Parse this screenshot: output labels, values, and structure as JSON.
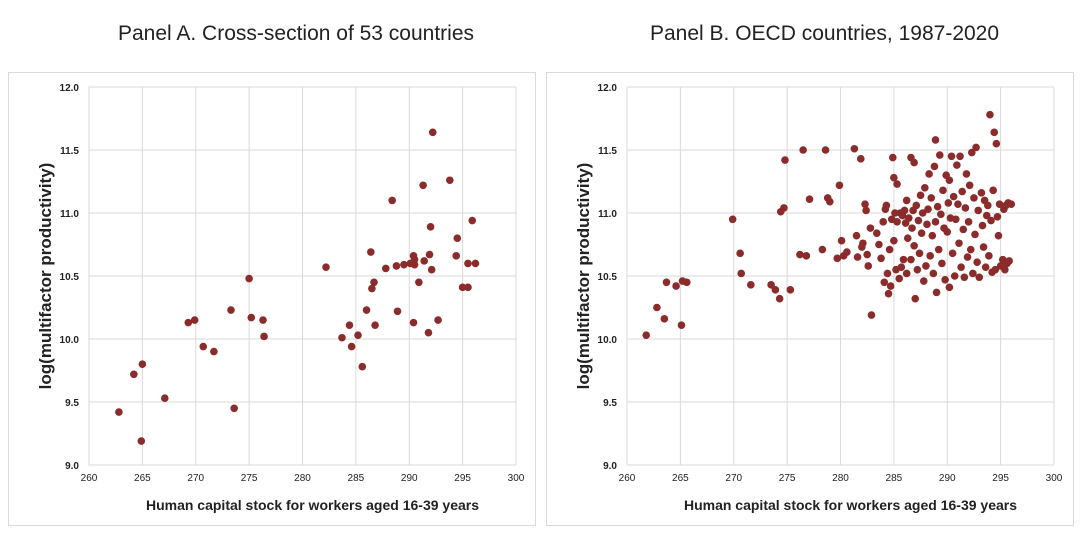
{
  "panels": [
    {
      "title": "Panel A. Cross-section of 53 countries",
      "chart_data": {
        "type": "scatter",
        "xlabel": "Human capital stock for workers aged 16-39 years",
        "ylabel": "log(multifactor productivity)",
        "xlim": [
          260,
          300
        ],
        "ylim": [
          9.0,
          12.0
        ],
        "xticks": [
          "260",
          "265",
          "270",
          "275",
          "280",
          "285",
          "290",
          "295",
          "300"
        ],
        "yticks": [
          "9.0",
          "9.5",
          "10.0",
          "10.5",
          "11.0",
          "11.5",
          "12.0"
        ],
        "grid": true,
        "marker_color": "#8b2b2b",
        "points": [
          [
            262.8,
            9.42
          ],
          [
            264.2,
            9.72
          ],
          [
            264.9,
            9.19
          ],
          [
            265.0,
            9.8
          ],
          [
            267.1,
            9.53
          ],
          [
            269.3,
            10.13
          ],
          [
            269.9,
            10.15
          ],
          [
            270.7,
            9.94
          ],
          [
            271.7,
            9.9
          ],
          [
            273.3,
            10.23
          ],
          [
            273.6,
            9.45
          ],
          [
            275.0,
            10.48
          ],
          [
            275.2,
            10.17
          ],
          [
            276.3,
            10.15
          ],
          [
            276.4,
            10.02
          ],
          [
            282.2,
            10.57
          ],
          [
            283.7,
            10.01
          ],
          [
            284.4,
            10.11
          ],
          [
            284.6,
            9.94
          ],
          [
            285.2,
            10.03
          ],
          [
            285.6,
            9.78
          ],
          [
            286.0,
            10.23
          ],
          [
            286.4,
            10.69
          ],
          [
            286.5,
            10.4
          ],
          [
            286.7,
            10.45
          ],
          [
            286.8,
            10.11
          ],
          [
            287.8,
            10.56
          ],
          [
            288.4,
            11.1
          ],
          [
            288.8,
            10.58
          ],
          [
            288.9,
            10.22
          ],
          [
            289.5,
            10.59
          ],
          [
            290.1,
            10.6
          ],
          [
            290.4,
            10.66
          ],
          [
            290.4,
            10.13
          ],
          [
            290.5,
            10.63
          ],
          [
            290.5,
            10.59
          ],
          [
            290.9,
            10.45
          ],
          [
            291.3,
            11.22
          ],
          [
            291.4,
            10.62
          ],
          [
            291.8,
            10.05
          ],
          [
            291.9,
            10.67
          ],
          [
            292.0,
            10.89
          ],
          [
            292.1,
            10.55
          ],
          [
            292.2,
            11.64
          ],
          [
            292.7,
            10.15
          ],
          [
            293.8,
            11.26
          ],
          [
            294.4,
            10.66
          ],
          [
            294.5,
            10.8
          ],
          [
            295.0,
            10.41
          ],
          [
            295.5,
            10.41
          ],
          [
            295.5,
            10.6
          ],
          [
            295.9,
            10.94
          ],
          [
            296.2,
            10.6
          ]
        ]
      }
    },
    {
      "title": "Panel B. OECD countries, 1987-2020",
      "chart_data": {
        "type": "scatter",
        "xlabel": "Human capital stock for workers aged 16-39 years",
        "ylabel": "log(multifactor productivity)",
        "xlim": [
          260,
          300
        ],
        "ylim": [
          9.0,
          12.0
        ],
        "xticks": [
          "260",
          "265",
          "270",
          "275",
          "280",
          "285",
          "290",
          "295",
          "300"
        ],
        "yticks": [
          "9.0",
          "9.5",
          "10.0",
          "10.5",
          "11.0",
          "11.5",
          "12.0"
        ],
        "grid": true,
        "marker_color": "#8b2b2b",
        "points": [
          [
            261.8,
            10.03
          ],
          [
            262.8,
            10.25
          ],
          [
            263.5,
            10.16
          ],
          [
            263.7,
            10.45
          ],
          [
            264.6,
            10.42
          ],
          [
            265.1,
            10.11
          ],
          [
            265.2,
            10.46
          ],
          [
            265.6,
            10.45
          ],
          [
            269.9,
            10.95
          ],
          [
            270.6,
            10.68
          ],
          [
            270.7,
            10.52
          ],
          [
            271.6,
            10.43
          ],
          [
            273.5,
            10.43
          ],
          [
            273.9,
            10.39
          ],
          [
            274.3,
            10.32
          ],
          [
            274.4,
            11.01
          ],
          [
            274.7,
            11.04
          ],
          [
            274.8,
            11.42
          ],
          [
            275.3,
            10.39
          ],
          [
            276.2,
            10.67
          ],
          [
            276.5,
            11.5
          ],
          [
            276.8,
            10.66
          ],
          [
            277.1,
            11.11
          ],
          [
            278.3,
            10.71
          ],
          [
            278.6,
            11.5
          ],
          [
            278.8,
            11.12
          ],
          [
            279.0,
            11.09
          ],
          [
            279.7,
            10.64
          ],
          [
            279.9,
            11.22
          ],
          [
            280.1,
            10.78
          ],
          [
            280.3,
            10.66
          ],
          [
            280.6,
            10.69
          ],
          [
            281.3,
            11.51
          ],
          [
            281.5,
            10.82
          ],
          [
            281.6,
            10.65
          ],
          [
            281.9,
            11.43
          ],
          [
            282.0,
            10.73
          ],
          [
            282.1,
            10.76
          ],
          [
            282.3,
            11.07
          ],
          [
            282.4,
            11.02
          ],
          [
            282.5,
            10.67
          ],
          [
            282.6,
            10.58
          ],
          [
            282.8,
            10.88
          ],
          [
            282.9,
            10.19
          ],
          [
            283.4,
            10.84
          ],
          [
            283.6,
            10.75
          ],
          [
            283.8,
            10.64
          ],
          [
            284.0,
            10.93
          ],
          [
            284.1,
            10.45
          ],
          [
            284.2,
            11.03
          ],
          [
            284.3,
            11.06
          ],
          [
            284.4,
            10.52
          ],
          [
            284.5,
            10.36
          ],
          [
            284.6,
            10.71
          ],
          [
            284.7,
            10.42
          ],
          [
            284.8,
            10.95
          ],
          [
            284.9,
            11.44
          ],
          [
            285.0,
            10.78
          ],
          [
            285.0,
            11.28
          ],
          [
            285.1,
            11.0
          ],
          [
            285.2,
            10.55
          ],
          [
            285.3,
            10.93
          ],
          [
            285.3,
            11.23
          ],
          [
            285.5,
            10.48
          ],
          [
            285.6,
            11.0
          ],
          [
            285.7,
            10.57
          ],
          [
            285.8,
            10.98
          ],
          [
            285.9,
            10.63
          ],
          [
            286.0,
            11.02
          ],
          [
            286.1,
            10.92
          ],
          [
            286.2,
            10.52
          ],
          [
            286.2,
            11.1
          ],
          [
            286.3,
            10.8
          ],
          [
            286.4,
            10.96
          ],
          [
            286.6,
            11.44
          ],
          [
            286.6,
            10.63
          ],
          [
            286.7,
            10.88
          ],
          [
            286.8,
            11.02
          ],
          [
            286.9,
            10.74
          ],
          [
            286.9,
            11.4
          ],
          [
            287.0,
            10.32
          ],
          [
            287.1,
            11.06
          ],
          [
            287.2,
            10.55
          ],
          [
            287.3,
            10.94
          ],
          [
            287.4,
            10.68
          ],
          [
            287.5,
            11.14
          ],
          [
            287.6,
            10.84
          ],
          [
            287.7,
            11.0
          ],
          [
            287.8,
            10.46
          ],
          [
            287.9,
            11.2
          ],
          [
            288.0,
            10.58
          ],
          [
            288.1,
            10.91
          ],
          [
            288.2,
            11.03
          ],
          [
            288.3,
            11.31
          ],
          [
            288.4,
            10.66
          ],
          [
            288.5,
            11.12
          ],
          [
            288.6,
            10.82
          ],
          [
            288.7,
            10.52
          ],
          [
            288.8,
            11.37
          ],
          [
            288.9,
            10.93
          ],
          [
            288.9,
            11.58
          ],
          [
            289.0,
            10.37
          ],
          [
            289.1,
            11.05
          ],
          [
            289.2,
            10.71
          ],
          [
            289.3,
            11.46
          ],
          [
            289.4,
            10.99
          ],
          [
            289.5,
            10.6
          ],
          [
            289.6,
            11.18
          ],
          [
            289.7,
            10.88
          ],
          [
            289.8,
            10.47
          ],
          [
            289.9,
            11.3
          ],
          [
            290.0,
            10.85
          ],
          [
            290.1,
            11.08
          ],
          [
            290.2,
            10.41
          ],
          [
            290.2,
            11.26
          ],
          [
            290.3,
            10.96
          ],
          [
            290.4,
            11.45
          ],
          [
            290.5,
            10.68
          ],
          [
            290.6,
            11.13
          ],
          [
            290.7,
            10.5
          ],
          [
            290.8,
            10.95
          ],
          [
            290.9,
            11.38
          ],
          [
            291.0,
            11.07
          ],
          [
            291.1,
            10.76
          ],
          [
            291.2,
            11.45
          ],
          [
            291.3,
            10.57
          ],
          [
            291.4,
            11.17
          ],
          [
            291.5,
            10.87
          ],
          [
            291.6,
            10.49
          ],
          [
            291.7,
            11.04
          ],
          [
            291.8,
            11.31
          ],
          [
            291.9,
            10.65
          ],
          [
            292.0,
            10.93
          ],
          [
            292.1,
            11.22
          ],
          [
            292.2,
            10.71
          ],
          [
            292.3,
            11.48
          ],
          [
            292.4,
            10.52
          ],
          [
            292.5,
            11.12
          ],
          [
            292.6,
            10.83
          ],
          [
            292.7,
            11.52
          ],
          [
            292.8,
            10.61
          ],
          [
            292.9,
            11.02
          ],
          [
            293.0,
            10.49
          ],
          [
            293.2,
            11.16
          ],
          [
            293.3,
            10.9
          ],
          [
            293.4,
            10.73
          ],
          [
            293.5,
            11.1
          ],
          [
            293.6,
            10.57
          ],
          [
            293.7,
            10.98
          ],
          [
            293.8,
            11.06
          ],
          [
            293.9,
            10.66
          ],
          [
            294.0,
            11.78
          ],
          [
            294.1,
            10.94
          ],
          [
            294.2,
            10.53
          ],
          [
            294.3,
            11.18
          ],
          [
            294.4,
            11.64
          ],
          [
            294.5,
            10.55
          ],
          [
            294.6,
            11.55
          ],
          [
            294.7,
            10.97
          ],
          [
            294.8,
            10.82
          ],
          [
            294.9,
            11.07
          ],
          [
            295.0,
            10.58
          ],
          [
            295.2,
            10.63
          ],
          [
            295.3,
            11.03
          ],
          [
            295.4,
            10.55
          ],
          [
            295.5,
            11.06
          ],
          [
            295.6,
            10.6
          ],
          [
            295.7,
            11.08
          ],
          [
            295.8,
            10.62
          ],
          [
            296.0,
            11.07
          ]
        ]
      }
    }
  ]
}
